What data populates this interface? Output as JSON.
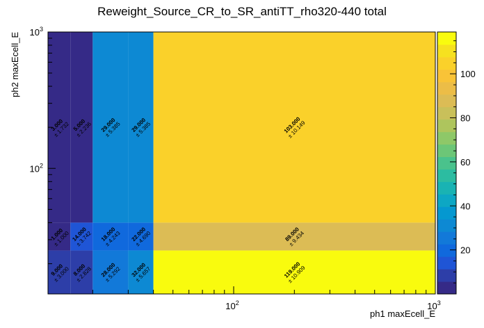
{
  "chart_data": {
    "type": "heatmap",
    "title": "Reweight_Source_CR_to_SR_antiTT_rho320-440 total",
    "xlabel": "ph1 maxEcell_E",
    "ylabel": "ph2 maxEcell_E",
    "x_scale": "log",
    "y_scale": "log",
    "xlim": [
      12,
      1000
    ],
    "ylim": [
      12,
      1000
    ],
    "x_tick_labels": [
      {
        "value": 100,
        "base": "10",
        "exp": "2"
      },
      {
        "value": 1000,
        "base": "10",
        "exp": "3"
      }
    ],
    "y_tick_labels": [
      {
        "value": 100,
        "base": "10",
        "exp": "2"
      },
      {
        "value": 1000,
        "base": "10",
        "exp": "3"
      }
    ],
    "x_edges": [
      12,
      15.5,
      20,
      30,
      40,
      1000
    ],
    "y_edges": [
      12,
      25,
      40,
      1000
    ],
    "cells": [
      {
        "x0": 12,
        "x1": 15.5,
        "y0": 12,
        "y1": 25,
        "value": 9,
        "label": "9.000",
        "err": "± 3.000"
      },
      {
        "x0": 15.5,
        "x1": 20,
        "y0": 12,
        "y1": 25,
        "value": 8,
        "label": "8.000",
        "err": "± 2.828"
      },
      {
        "x0": 20,
        "x1": 30,
        "y0": 12,
        "y1": 25,
        "value": 28,
        "label": "28.000",
        "err": "± 5.292"
      },
      {
        "x0": 30,
        "x1": 40,
        "y0": 12,
        "y1": 25,
        "value": 32,
        "label": "32.000",
        "err": "± 5.657"
      },
      {
        "x0": 40,
        "x1": 1000,
        "y0": 12,
        "y1": 25,
        "value": 119,
        "label": "119.000",
        "err": "± 10.909"
      },
      {
        "x0": 12,
        "x1": 15.5,
        "y0": 25,
        "y1": 40,
        "value": 1,
        "label": "1.000",
        "err": "± 1.000"
      },
      {
        "x0": 15.5,
        "x1": 20,
        "y0": 25,
        "y1": 40,
        "value": 14,
        "label": "14.000",
        "err": "± 3.742"
      },
      {
        "x0": 20,
        "x1": 30,
        "y0": 25,
        "y1": 40,
        "value": 18,
        "label": "18.000",
        "err": "± 4.243"
      },
      {
        "x0": 30,
        "x1": 40,
        "y0": 25,
        "y1": 40,
        "value": 22,
        "label": "22.000",
        "err": "± 4.690"
      },
      {
        "x0": 40,
        "x1": 1000,
        "y0": 25,
        "y1": 40,
        "value": 89,
        "label": "89.000",
        "err": "± 9.434"
      },
      {
        "x0": 12,
        "x1": 15.5,
        "y0": 40,
        "y1": 1000,
        "value": 3,
        "label": "3.000",
        "err": "± 1.732"
      },
      {
        "x0": 15.5,
        "x1": 20,
        "y0": 40,
        "y1": 1000,
        "value": 5,
        "label": "5.000",
        "err": "± 2.236"
      },
      {
        "x0": 20,
        "x1": 30,
        "y0": 40,
        "y1": 1000,
        "value": 29,
        "label": "29.000",
        "err": "± 5.385"
      },
      {
        "x0": 30,
        "x1": 40,
        "y0": 40,
        "y1": 1000,
        "value": 29,
        "label": "29.000",
        "err": "± 5.385"
      },
      {
        "x0": 40,
        "x1": 1000,
        "y0": 40,
        "y1": 1000,
        "value": 103,
        "label": "103.000",
        "err": "± 10.149"
      }
    ],
    "colorbar": {
      "min": 0,
      "max": 119,
      "ticks": [
        20,
        40,
        60,
        80,
        100
      ],
      "palette": [
        "#352a87",
        "#2d3ea8",
        "#1f55d6",
        "#1069dd",
        "#1279d9",
        "#0d89d3",
        "#0598d0",
        "#0da7c4",
        "#19b3b3",
        "#2cbca1",
        "#4ac28c",
        "#6cc677",
        "#8ec868",
        "#aec55d",
        "#c9c05a",
        "#dcbc55",
        "#ecbd47",
        "#f9c337",
        "#fad12a",
        "#f6e11f",
        "#f9fb0e"
      ],
      "grid": false
    }
  }
}
